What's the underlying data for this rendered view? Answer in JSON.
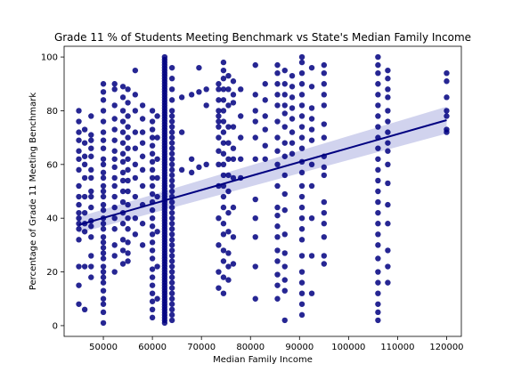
{
  "chart_data": {
    "type": "scatter",
    "title": "Grade 11 % of Students Meeting Benchmark vs State's Median Family Income",
    "xlabel": "Median Family Income",
    "ylabel": "Percentage of Grade 11 Meeting Benchmark",
    "xlim": [
      42000,
      123000
    ],
    "ylim": [
      -4,
      104
    ],
    "xticks": [
      50000,
      60000,
      70000,
      80000,
      90000,
      100000,
      110000,
      120000
    ],
    "yticks": [
      0,
      20,
      40,
      60,
      80,
      100
    ],
    "grid": false,
    "point_color": "#000080",
    "line_color": "#000080",
    "band_color": "#c9cbeb",
    "regression": {
      "x": [
        45000,
        120000
      ],
      "y": [
        37.5,
        76.5
      ],
      "ci_lower": [
        34.5,
        71.5
      ],
      "ci_upper": [
        40.5,
        81.5
      ]
    },
    "columns": [
      {
        "x": 45000,
        "y": [
          8,
          15,
          22,
          32,
          36,
          38,
          40,
          42,
          45,
          48,
          52,
          58,
          62,
          65,
          69,
          72,
          76,
          80
        ]
      },
      {
        "x": 46200,
        "y": [
          6,
          22,
          35,
          38,
          42,
          48,
          55,
          60,
          63,
          68,
          73
        ]
      },
      {
        "x": 47500,
        "y": [
          18,
          22,
          26,
          33,
          37,
          39,
          44,
          48,
          50,
          55,
          58,
          63,
          66,
          69,
          71,
          78
        ]
      },
      {
        "x": 50000,
        "y": [
          1,
          5,
          8,
          10,
          13,
          16,
          18,
          20,
          22,
          25,
          27,
          29,
          31,
          33,
          36,
          38,
          40,
          43,
          45,
          48,
          50,
          52,
          55,
          57,
          60,
          62,
          66,
          69,
          72,
          76,
          80,
          84,
          87,
          90
        ]
      },
      {
        "x": 52300,
        "y": [
          20,
          26,
          30,
          36,
          40,
          44,
          48,
          52,
          55,
          59,
          62,
          65,
          69,
          73,
          77,
          82,
          88,
          90
        ]
      },
      {
        "x": 54000,
        "y": [
          23,
          28,
          32,
          38,
          42,
          46,
          50,
          54,
          57,
          61,
          64,
          68,
          72,
          76,
          80,
          85,
          89
        ]
      },
      {
        "x": 55000,
        "y": [
          24,
          27,
          31,
          36,
          40,
          45,
          50,
          54,
          58,
          62,
          66,
          70,
          74,
          78,
          83,
          88
        ]
      },
      {
        "x": 56500,
        "y": [
          34,
          40,
          48,
          55,
          60,
          66,
          72,
          80,
          86,
          95
        ]
      },
      {
        "x": 58000,
        "y": [
          30,
          38,
          45,
          52,
          58,
          63,
          68,
          72,
          77,
          82
        ]
      },
      {
        "x": 60000,
        "y": [
          3,
          6,
          9,
          12,
          15,
          18,
          21,
          25,
          28,
          31,
          34,
          37,
          40,
          43,
          46,
          49,
          52,
          55,
          58,
          61,
          64,
          67,
          70,
          73,
          76,
          80
        ]
      },
      {
        "x": 61000,
        "y": [
          10,
          22,
          35,
          48,
          55,
          62,
          70,
          78
        ]
      },
      {
        "x": 62500,
        "y": [
          1,
          2,
          3,
          4,
          5,
          6,
          7,
          8,
          9,
          10,
          11,
          12,
          13,
          14,
          15,
          16,
          17,
          18,
          19,
          20,
          21,
          22,
          23,
          24,
          25,
          26,
          27,
          28,
          29,
          30,
          31,
          32,
          33,
          34,
          35,
          36,
          37,
          38,
          39,
          40,
          41,
          42,
          43,
          44,
          45,
          46,
          47,
          48,
          49,
          50,
          51,
          52,
          53,
          54,
          55,
          56,
          57,
          58,
          59,
          60,
          61,
          62,
          63,
          64,
          65,
          66,
          67,
          68,
          69,
          70,
          71,
          72,
          73,
          74,
          75,
          76,
          77,
          78,
          79,
          80,
          81,
          82,
          83,
          84,
          85,
          86,
          87,
          88,
          89,
          90,
          91,
          92,
          93,
          94,
          95,
          96,
          97,
          98,
          99,
          100
        ]
      },
      {
        "x": 64000,
        "y": [
          2,
          4,
          6,
          8,
          10,
          12,
          14,
          16,
          18,
          20,
          22,
          24,
          26,
          28,
          30,
          32,
          34,
          36,
          38,
          40,
          42,
          44,
          46,
          48,
          50,
          52,
          54,
          56,
          58,
          60,
          62,
          64,
          66,
          68,
          70,
          72,
          74,
          76,
          78,
          80,
          84,
          88,
          92,
          96
        ]
      },
      {
        "x": 66000,
        "y": [
          58,
          72,
          85
        ]
      },
      {
        "x": 68000,
        "y": [
          57,
          62,
          86
        ]
      },
      {
        "x": 69500,
        "y": [
          59,
          87,
          96
        ]
      },
      {
        "x": 71000,
        "y": [
          60,
          82,
          88
        ]
      },
      {
        "x": 73500,
        "y": [
          14,
          20,
          30,
          40,
          52,
          60,
          65,
          70,
          74,
          76,
          78,
          80,
          84,
          88,
          90
        ]
      },
      {
        "x": 74500,
        "y": [
          12,
          18,
          24,
          28,
          34,
          38,
          44,
          48,
          52,
          56,
          60,
          64,
          68,
          72,
          76,
          80,
          84,
          88,
          92,
          95,
          98
        ]
      },
      {
        "x": 75500,
        "y": [
          17,
          22,
          27,
          35,
          42,
          50,
          56,
          62,
          68,
          74,
          82,
          88,
          93
        ]
      },
      {
        "x": 76500,
        "y": [
          23,
          33,
          44,
          55,
          62,
          66,
          74,
          83,
          86,
          91
        ]
      },
      {
        "x": 78000,
        "y": [
          55,
          62,
          70,
          78,
          88
        ]
      },
      {
        "x": 81000,
        "y": [
          10,
          22,
          33,
          40,
          47,
          62,
          70,
          76,
          80,
          86,
          97
        ]
      },
      {
        "x": 83000,
        "y": [
          62,
          67,
          73,
          78,
          84,
          90
        ]
      },
      {
        "x": 85500,
        "y": [
          10,
          15,
          19,
          24,
          28,
          33,
          37,
          41,
          44,
          52,
          60,
          65,
          70,
          76,
          82,
          86,
          90,
          94,
          97
        ]
      },
      {
        "x": 87000,
        "y": [
          2,
          13,
          17,
          22,
          27,
          34,
          43,
          49,
          56,
          63,
          68,
          74,
          79,
          82,
          86,
          90,
          95
        ]
      },
      {
        "x": 88500,
        "y": [
          64,
          68,
          72,
          77,
          81,
          85,
          89,
          93
        ]
      },
      {
        "x": 90500,
        "y": [
          4,
          8,
          12,
          16,
          20,
          26,
          32,
          36,
          40,
          44,
          48,
          52,
          57,
          61,
          66,
          70,
          74,
          78,
          82,
          86,
          90,
          94,
          98,
          100
        ]
      },
      {
        "x": 92500,
        "y": [
          12,
          26,
          40,
          52,
          60,
          69,
          73,
          77,
          81,
          89,
          96
        ]
      },
      {
        "x": 95000,
        "y": [
          23,
          26,
          33,
          38,
          42,
          46,
          56,
          59,
          63,
          70,
          75,
          82,
          86,
          90,
          94,
          97
        ]
      },
      {
        "x": 106000,
        "y": [
          2,
          5,
          8,
          12,
          16,
          20,
          25,
          30,
          34,
          38,
          42,
          46,
          50,
          54,
          58,
          62,
          66,
          70,
          74,
          78,
          82,
          86,
          90,
          94,
          97,
          100
        ]
      },
      {
        "x": 108000,
        "y": [
          16,
          22,
          28,
          38,
          45,
          53,
          60,
          65,
          68,
          72,
          76,
          80,
          85,
          88,
          92,
          95
        ]
      },
      {
        "x": 120000,
        "y": [
          72,
          73,
          78,
          80,
          85,
          91,
          94
        ]
      }
    ]
  }
}
